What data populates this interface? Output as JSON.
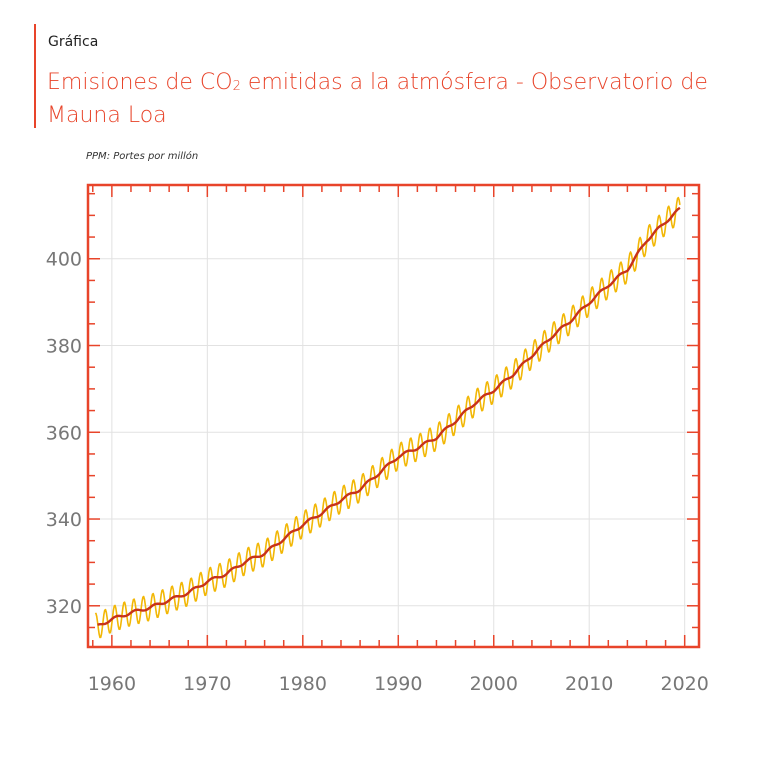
{
  "header": {
    "kicker": "Gráfica",
    "title_main": "Emisiones de CO",
    "title_sub": "2",
    "title_rest": " emitidas a la atmósfera - Observatorio de Mauna Loa",
    "unit_note": "PPM: Portes por millón"
  },
  "colors": {
    "accent": "#e8442a",
    "trend_line": "#c8321a",
    "seasonal_line": "#f2b705",
    "grid": "#e2e2e2"
  },
  "chart_data": {
    "type": "line",
    "title": "Emisiones de CO2 emitidas a la atmósfera - Observatorio de Mauna Loa",
    "xlabel": "",
    "ylabel": "",
    "xlim": [
      1957.5,
      2021.5
    ],
    "ylim": [
      310.5,
      417
    ],
    "x_ticks": [
      1960,
      1970,
      1980,
      1990,
      2000,
      2010,
      2020
    ],
    "y_ticks": [
      320,
      340,
      360,
      380,
      400
    ],
    "grid": true,
    "legend": "none",
    "seasonal_amplitude_ppm": 3.0,
    "series": [
      {
        "kind": "annual_trend",
        "x": [
          1958.5,
          1960,
          1962,
          1964,
          1966,
          1968,
          1970,
          1972,
          1974,
          1976,
          1978,
          1980,
          1982,
          1984,
          1986,
          1988,
          1990,
          1992,
          1994,
          1996,
          1998,
          2000,
          2002,
          2004,
          2006,
          2008,
          2010,
          2012,
          2014,
          2016,
          2018,
          2019.5
        ],
        "values": [
          315.3,
          316.9,
          318.4,
          319.6,
          321.3,
          323.0,
          325.6,
          327.4,
          330.2,
          332.1,
          335.4,
          338.7,
          341.4,
          344.4,
          346.9,
          350.6,
          354.4,
          356.4,
          358.8,
          362.6,
          366.7,
          369.7,
          373.3,
          377.7,
          381.9,
          385.6,
          389.9,
          393.9,
          397.5,
          404.2,
          408.5,
          411.5
        ]
      },
      {
        "kind": "monthly_seasonal",
        "x_start": 1958.25,
        "x_end": 2019.5,
        "amplitude": 3.0
      }
    ]
  }
}
